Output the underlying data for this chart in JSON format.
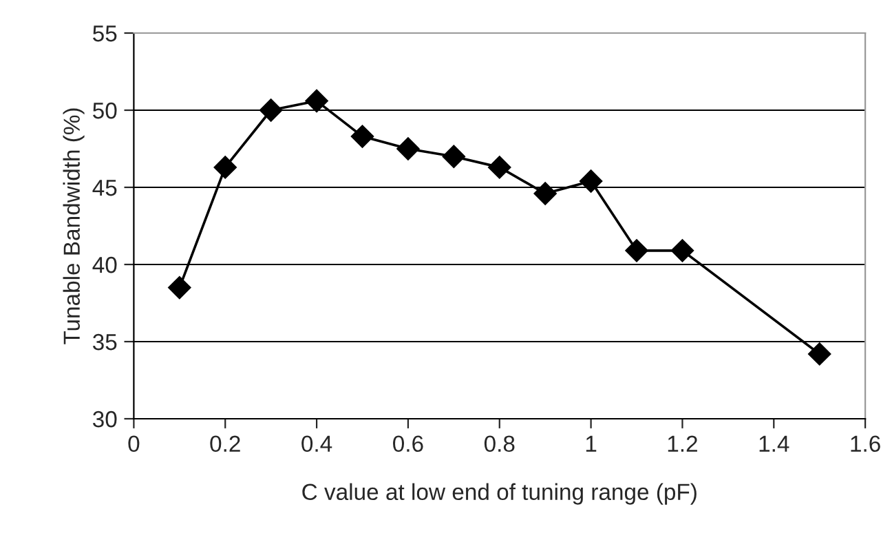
{
  "chart_data": {
    "type": "line",
    "xlabel": "C value at low end of tuning range (pF)",
    "ylabel": "Tunable Bandwidth (%)",
    "series": [
      {
        "color": "#000000",
        "x": [
          0.1,
          0.2,
          0.3,
          0.4,
          0.5,
          0.6,
          0.7,
          0.8,
          0.9,
          1.0,
          1.1,
          1.2,
          1.5
        ],
        "values": [
          38.5,
          46.3,
          50.0,
          50.6,
          48.3,
          47.5,
          47.0,
          46.3,
          44.6,
          45.4,
          40.9,
          40.9,
          34.2
        ]
      }
    ],
    "xlim": [
      0,
      1.6
    ],
    "xticks": [
      0,
      0.2,
      0.4,
      0.6,
      0.8,
      1,
      1.2,
      1.4,
      1.6
    ],
    "ylim": [
      30,
      55
    ],
    "yticks": [
      30,
      35,
      40,
      45,
      50,
      55
    ],
    "grid": "y",
    "marker": "diamond",
    "line_style": "solid",
    "legend": false
  }
}
